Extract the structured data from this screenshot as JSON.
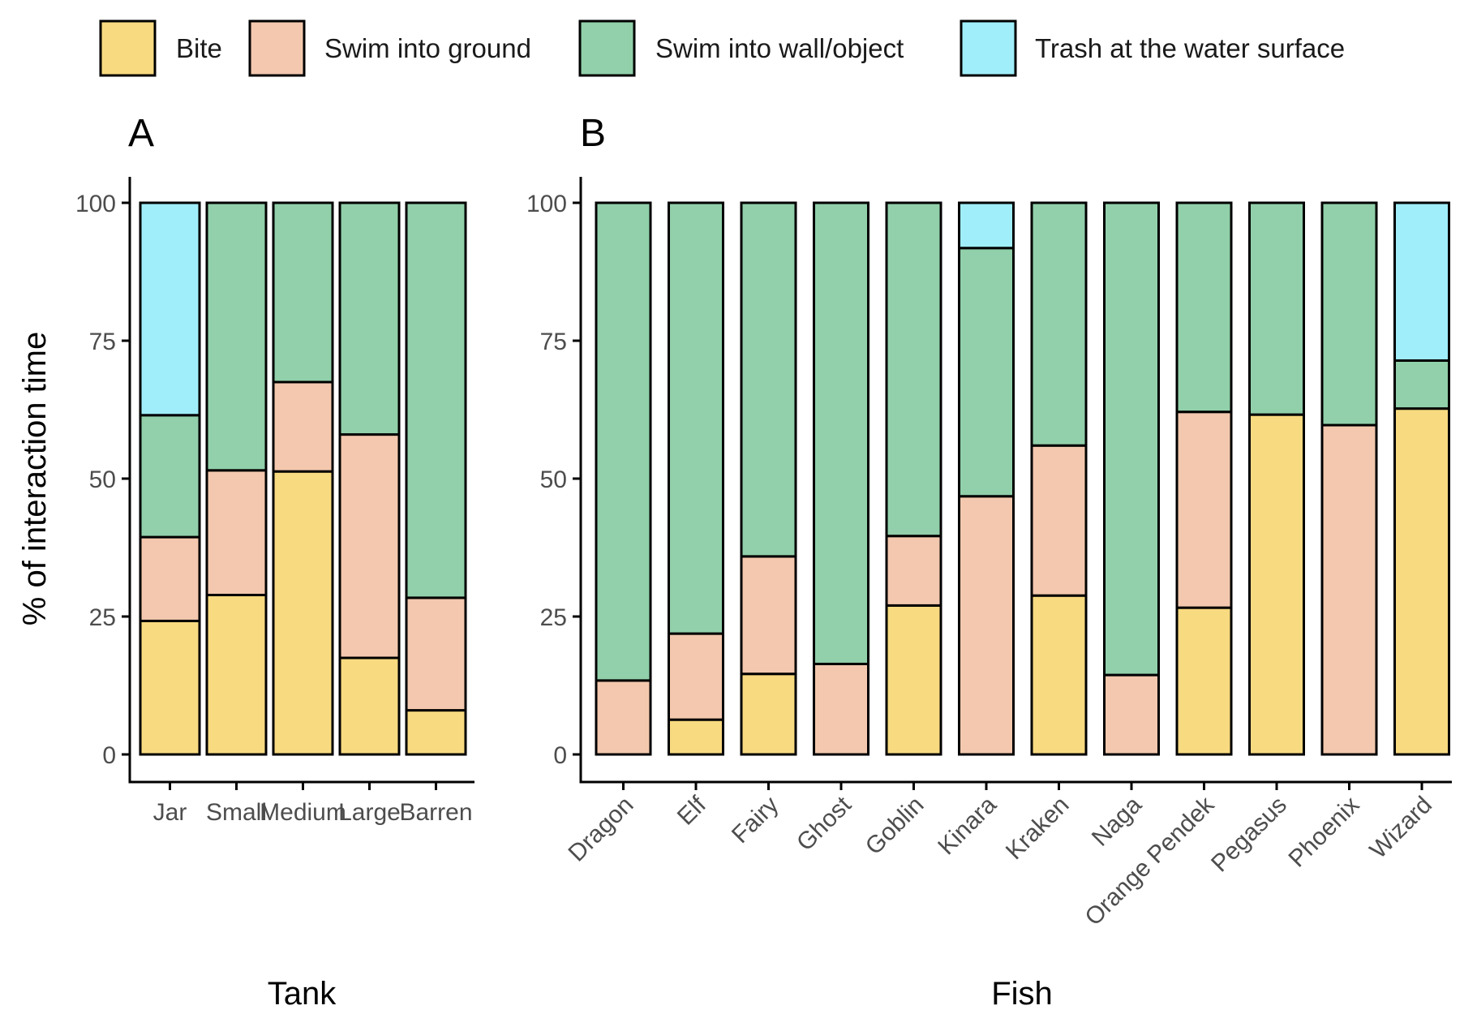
{
  "legend": [
    {
      "label": "Bite",
      "color": "#F8DA80"
    },
    {
      "label": "Swim into ground",
      "color": "#F3C8AE"
    },
    {
      "label": "Swim into wall/object",
      "color": "#91D0AA"
    },
    {
      "label": "Trash at the water surface",
      "color": "#A0EEFA"
    }
  ],
  "chart_data": [
    {
      "type": "bar",
      "stacked": true,
      "panel_tag": "A",
      "xlabel": "Tank",
      "ylabel": "% of interaction time",
      "ylim": [
        0,
        100
      ],
      "yticks": [
        0,
        25,
        50,
        75,
        100
      ],
      "categories": [
        "Jar",
        "Small",
        "Medium",
        "Large",
        "Barren"
      ],
      "series": [
        {
          "name": "Bite",
          "values": [
            24.2,
            28.9,
            51.3,
            17.5,
            8.0
          ]
        },
        {
          "name": "Swim into ground",
          "values": [
            15.2,
            22.6,
            16.2,
            40.5,
            20.4
          ]
        },
        {
          "name": "Swim into wall/object",
          "values": [
            22.1,
            48.5,
            32.5,
            42.0,
            71.6
          ]
        },
        {
          "name": "Trash at the water surface",
          "values": [
            38.5,
            0,
            0,
            0,
            0
          ]
        }
      ]
    },
    {
      "type": "bar",
      "stacked": true,
      "panel_tag": "B",
      "xlabel": "Fish",
      "ylabel": "",
      "ylim": [
        0,
        100
      ],
      "yticks": [
        0,
        25,
        50,
        75,
        100
      ],
      "categories": [
        "Dragon",
        "Elf",
        "Fairy",
        "Ghost",
        "Goblin",
        "Kinara",
        "Kraken",
        "Naga",
        "Orange Pendek",
        "Pegasus",
        "Phoenix",
        "Wizard"
      ],
      "series": [
        {
          "name": "Bite",
          "values": [
            0,
            6.3,
            14.6,
            0,
            27.0,
            0,
            28.8,
            0,
            26.6,
            61.6,
            0,
            62.7
          ]
        },
        {
          "name": "Swim into ground",
          "values": [
            13.4,
            15.6,
            21.3,
            16.4,
            12.6,
            46.8,
            27.2,
            14.4,
            35.5,
            0,
            59.7,
            0
          ]
        },
        {
          "name": "Swim into wall/object",
          "values": [
            86.6,
            78.1,
            64.1,
            83.6,
            60.4,
            45.0,
            44.0,
            85.6,
            37.9,
            38.4,
            40.3,
            8.7
          ]
        },
        {
          "name": "Trash at the water surface",
          "values": [
            0,
            0,
            0,
            0,
            0,
            8.2,
            0,
            0,
            0,
            0,
            0,
            28.6
          ]
        }
      ]
    }
  ]
}
